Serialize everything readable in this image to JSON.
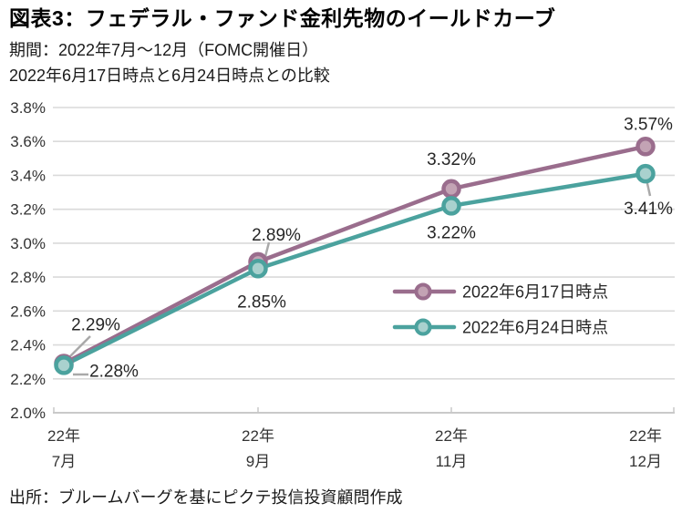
{
  "header": {
    "title": "図表3：フェデラル・ファンド金利先物のイールドカーブ",
    "subtitle1": "期間：2022年7月～12月（FOMC開催日）",
    "subtitle2": "2022年6月17日時点と6月24日時点との比較"
  },
  "source": "出所：ブルームバーグを基にピクテ投信投資顧問作成",
  "colors": {
    "series1_line": "#9A6D8D",
    "series1_fill": "#C3A3B4",
    "series2_line": "#4BA29E",
    "series2_fill": "#A9D1CE",
    "gridline": "#DADADA",
    "axis": "#C9C9C9",
    "leader": "#A9A9A9",
    "label_text": "#262626",
    "tick_text": "#333333"
  },
  "chart_data": {
    "type": "line",
    "title": "フェデラル・ファンド金利先物のイールドカーブ",
    "categories": [
      [
        "22年",
        "7月"
      ],
      [
        "22年",
        "9月"
      ],
      [
        "22年",
        "11月"
      ],
      [
        "22年",
        "12月"
      ]
    ],
    "series": [
      {
        "name": "2022年6月17日時点",
        "values": [
          2.29,
          2.89,
          3.32,
          3.57
        ],
        "labels": [
          "2.29%",
          "2.89%",
          "3.32%",
          "3.57%"
        ],
        "color_key": "series1"
      },
      {
        "name": "2022年6月24日時点",
        "values": [
          2.28,
          2.85,
          3.22,
          3.41
        ],
        "labels": [
          "2.28%",
          "2.85%",
          "3.22%",
          "3.41%"
        ],
        "color_key": "series2"
      }
    ],
    "ylim": [
      2.0,
      3.8
    ],
    "ytick_step": 0.2,
    "yticks": [
      "2.0%",
      "2.2%",
      "2.4%",
      "2.6%",
      "2.8%",
      "3.0%",
      "3.2%",
      "3.4%",
      "3.6%",
      "3.8%"
    ],
    "grid": true,
    "legend_position": "inside-right"
  }
}
